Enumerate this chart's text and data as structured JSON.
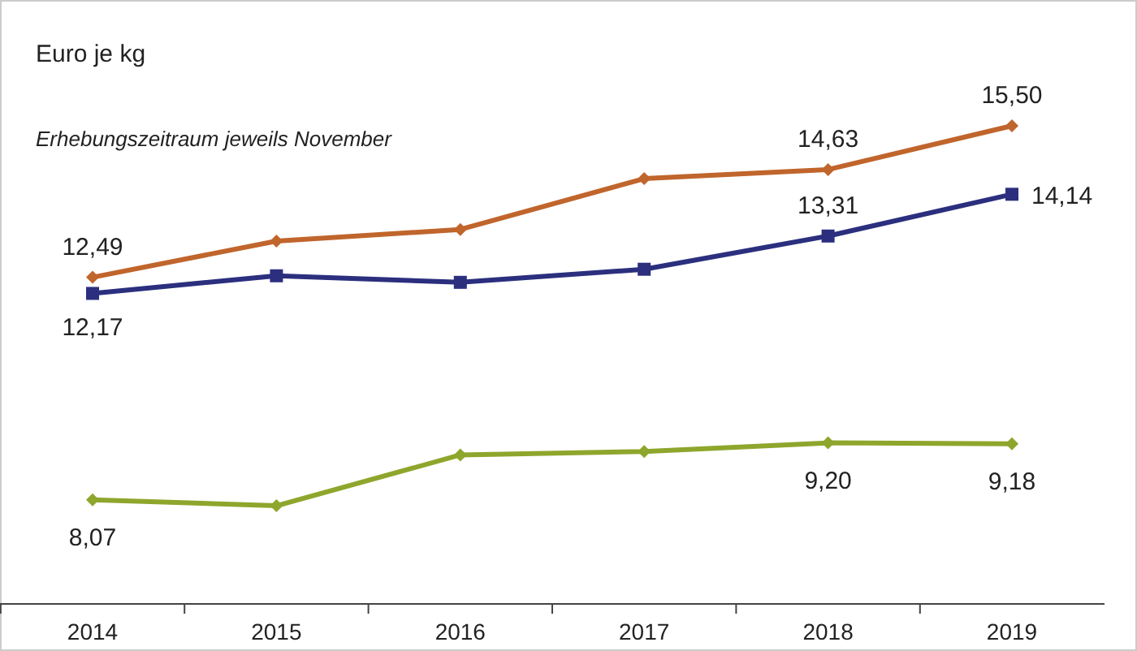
{
  "chart_data": {
    "type": "line",
    "ylabel": "Euro je kg",
    "subtitle": "Erhebungszeitraum jeweils November",
    "categories": [
      "2014",
      "2015",
      "2016",
      "2017",
      "2018",
      "2019"
    ],
    "ylim": [
      6,
      18
    ],
    "line_style": "solid",
    "series": [
      {
        "color": "#c0652c",
        "marker": "diamond",
        "values": [
          12.49,
          13.21,
          13.44,
          14.45,
          14.63,
          15.5
        ],
        "value_labels": [
          "12,49",
          null,
          null,
          null,
          "14,63",
          "15,50"
        ]
      },
      {
        "color": "#2b2f7e",
        "marker": "square",
        "values": [
          12.17,
          12.52,
          12.39,
          12.65,
          13.31,
          14.14
        ],
        "value_labels": [
          "12,17",
          null,
          null,
          null,
          "13,31",
          "14,14"
        ]
      },
      {
        "color": "#8ea62c",
        "marker": "diamond",
        "values": [
          8.07,
          7.95,
          8.96,
          9.03,
          9.2,
          9.18
        ],
        "value_labels": [
          "8,07",
          null,
          null,
          null,
          "9,20",
          "9,18"
        ]
      }
    ]
  }
}
